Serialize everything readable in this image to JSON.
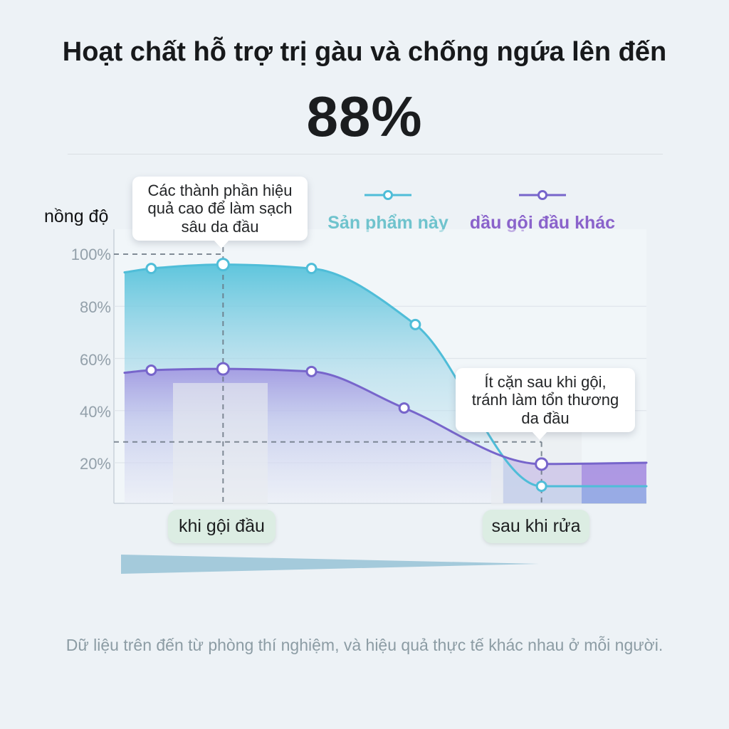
{
  "header": {
    "title": "Hoạt chất hỗ trợ trị gàu và chống ngứa lên đến",
    "highlight": "88%"
  },
  "chart": {
    "y_axis_label": "nồng độ",
    "y_ticks": [
      "100%",
      "80%",
      "60%",
      "40%",
      "20%"
    ],
    "legend": [
      {
        "label": "Sản phẩm này",
        "color": "#6FC3CD"
      },
      {
        "label": "dầu gội đầu khác",
        "color": "#8A63CB"
      }
    ],
    "callouts": [
      {
        "text": "Các thành phần hiệu\nquả cao để làm sạch\nsâu da đầu"
      },
      {
        "text": "Ít cặn sau khi gội,\ntránh làm tổn thương\nda đầu"
      }
    ],
    "x_labels": [
      "khi gội đầu",
      "sau khi rửa"
    ]
  },
  "footnote": "Dữ liệu trên đến từ phòng thí nghiệm, và hiệu quả thực tế khác nhau ở mỗi người.",
  "chart_data": {
    "type": "area",
    "title": "Hoạt chất hỗ trợ trị gàu và chống ngứa lên đến 88%",
    "ylabel": "nồng độ",
    "ylim": [
      0,
      100
    ],
    "y_ticks_percent": [
      100,
      80,
      60,
      40,
      20
    ],
    "grid": "horizontal",
    "legend_position": "top",
    "x_stages": [
      {
        "label": "khi gội đầu",
        "x": 0.205
      },
      {
        "label": "sau khi rửa",
        "x": 0.803
      }
    ],
    "series": [
      {
        "name": "Sản phẩm này",
        "color": "#4FBDD8",
        "points": [
          {
            "x": 0.02,
            "v": 93
          },
          {
            "x": 0.07,
            "v": 94.5,
            "marker": true
          },
          {
            "x": 0.205,
            "v": 96,
            "marker": true,
            "big": true
          },
          {
            "x": 0.371,
            "v": 94.5,
            "marker": true
          },
          {
            "x": 0.566,
            "v": 73,
            "marker": true
          },
          {
            "x": 0.803,
            "v": 11,
            "marker": true
          },
          {
            "x": 1,
            "v": 11
          }
        ]
      },
      {
        "name": "dầu gội đầu khác",
        "color": "#7765CB",
        "points": [
          {
            "x": 0.02,
            "v": 54.5
          },
          {
            "x": 0.07,
            "v": 55.5,
            "marker": true
          },
          {
            "x": 0.205,
            "v": 56,
            "marker": true,
            "big": true
          },
          {
            "x": 0.371,
            "v": 55,
            "marker": true
          },
          {
            "x": 0.545,
            "v": 41,
            "marker": true
          },
          {
            "x": 0.803,
            "v": 19.5,
            "marker": true,
            "big": true
          },
          {
            "x": 1,
            "v": 20
          }
        ]
      }
    ],
    "dashed_guides": [
      {
        "x": 0.205,
        "y_percent": 100
      },
      {
        "x": 0.803,
        "y_percent": 28
      }
    ]
  }
}
